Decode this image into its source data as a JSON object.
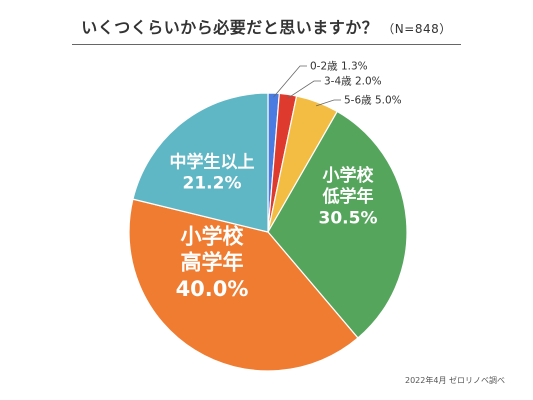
{
  "chart_data": {
    "type": "pie",
    "title": "いくつくらいから必要だと思いますか？",
    "subtitle": "（N=848）",
    "source": "2022年4月 ゼロリノベ調べ",
    "slices": [
      {
        "label": "0-2歳",
        "value": 1.3,
        "display": "1.3%",
        "color": "#4a7be0"
      },
      {
        "label": "3-4歳",
        "value": 2.0,
        "display": "2.0%",
        "color": "#de3b2e"
      },
      {
        "label": "5-6歳",
        "value": 5.0,
        "display": "5.0%",
        "color": "#f2bd42"
      },
      {
        "label": "小学校低学年",
        "label_lines": [
          "小学校",
          "低学年"
        ],
        "value": 30.5,
        "display": "30.5%",
        "color": "#55a55d"
      },
      {
        "label": "小学校高学年",
        "label_lines": [
          "小学校",
          "高学年"
        ],
        "value": 40.0,
        "display": "40.0%",
        "color": "#ef7c31"
      },
      {
        "label": "中学生以上",
        "label_lines": [
          "中学生以上"
        ],
        "value": 21.2,
        "display": "21.2%",
        "color": "#5fb6c4"
      }
    ],
    "start_angle_deg": 0,
    "direction": "clockwise",
    "legend": "none"
  }
}
